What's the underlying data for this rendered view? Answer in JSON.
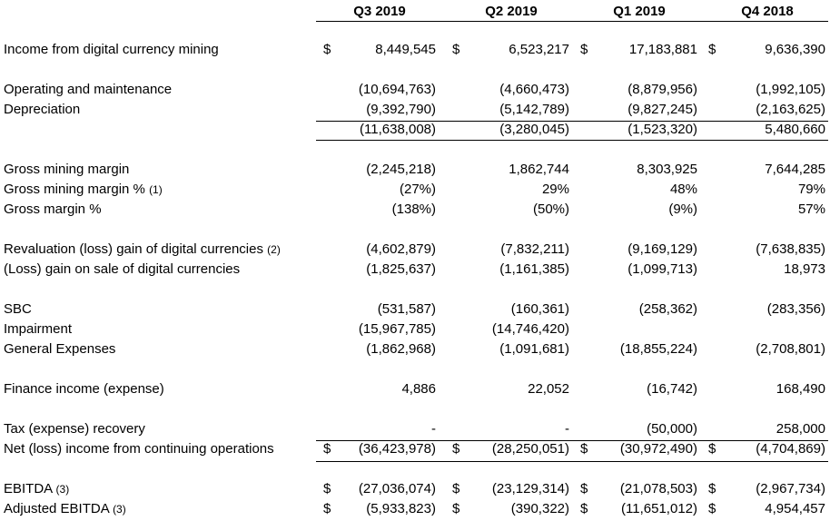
{
  "columns": [
    "Q3 2019",
    "Q2 2019",
    "Q1 2019",
    "Q4 2018"
  ],
  "rows": [
    {
      "label": "Income from digital currency mining",
      "note": "",
      "cur": [
        "$",
        "$",
        "$",
        "$"
      ],
      "values": [
        "8,449,545",
        "6,523,217",
        "17,183,881",
        "9,636,390"
      ]
    },
    {
      "label": "Operating and maintenance",
      "note": "",
      "cur": [
        "",
        "",
        "",
        ""
      ],
      "values": [
        "(10,694,763)",
        "(4,660,473)",
        "(8,879,956)",
        "(1,992,105)"
      ]
    },
    {
      "label": "Depreciation",
      "note": "",
      "cur": [
        "",
        "",
        "",
        ""
      ],
      "values": [
        "(9,392,790)",
        "(5,142,789)",
        "(9,827,245)",
        "(2,163,625)"
      ]
    },
    {
      "label": "",
      "note": "",
      "cur": [
        "",
        "",
        "",
        ""
      ],
      "values": [
        "(11,638,008)",
        "(3,280,045)",
        "(1,523,320)",
        "5,480,660"
      ]
    },
    {
      "label": "Gross mining margin",
      "note": "",
      "cur": [
        "",
        "",
        "",
        ""
      ],
      "values": [
        "(2,245,218)",
        "1,862,744",
        "8,303,925",
        "7,644,285"
      ]
    },
    {
      "label": "Gross mining margin % ",
      "note": "(1)",
      "cur": [
        "",
        "",
        "",
        ""
      ],
      "values": [
        "(27%)",
        "29%",
        "48%",
        "79%"
      ]
    },
    {
      "label": "Gross margin %",
      "note": "",
      "cur": [
        "",
        "",
        "",
        ""
      ],
      "values": [
        "(138%)",
        "(50%)",
        "(9%)",
        "57%"
      ]
    },
    {
      "label": "Revaluation (loss) gain of digital currencies ",
      "note": "(2)",
      "cur": [
        "",
        "",
        "",
        ""
      ],
      "values": [
        "(4,602,879)",
        "(7,832,211)",
        "(9,169,129)",
        "(7,638,835)"
      ]
    },
    {
      "label": "(Loss) gain on sale of digital currencies",
      "note": "",
      "cur": [
        "",
        "",
        "",
        ""
      ],
      "values": [
        "(1,825,637)",
        "(1,161,385)",
        "(1,099,713)",
        "18,973"
      ]
    },
    {
      "label": "SBC",
      "note": "",
      "cur": [
        "",
        "",
        "",
        ""
      ],
      "values": [
        "(531,587)",
        "(160,361)",
        "(258,362)",
        "(283,356)"
      ]
    },
    {
      "label": "Impairment",
      "note": "",
      "cur": [
        "",
        "",
        "",
        ""
      ],
      "values": [
        "(15,967,785)",
        "(14,746,420)",
        "",
        ""
      ]
    },
    {
      "label": "General Expenses",
      "note": "",
      "cur": [
        "",
        "",
        "",
        ""
      ],
      "values": [
        "(1,862,968)",
        "(1,091,681)",
        "(18,855,224)",
        "(2,708,801)"
      ]
    },
    {
      "label": "Finance income (expense)",
      "note": "",
      "cur": [
        "",
        "",
        "",
        ""
      ],
      "values": [
        "4,886",
        "22,052",
        "(16,742)",
        "168,490"
      ]
    },
    {
      "label": "Tax (expense) recovery",
      "note": "",
      "cur": [
        "",
        "",
        "",
        ""
      ],
      "values": [
        "-",
        "-",
        "(50,000)",
        "258,000"
      ]
    },
    {
      "label": "Net (loss) income from continuing operations",
      "note": "",
      "cur": [
        "$",
        "$",
        "$",
        "$"
      ],
      "values": [
        "(36,423,978)",
        "(28,250,051)",
        "(30,972,490)",
        "(4,704,869)"
      ]
    },
    {
      "label": "EBITDA ",
      "note": "(3)",
      "cur": [
        "$",
        "$",
        "$",
        "$"
      ],
      "values": [
        "(27,036,074)",
        "(23,129,314)",
        "(21,078,503)",
        "(2,967,734)"
      ]
    },
    {
      "label": "Adjusted EBITDA ",
      "note": "(3)",
      "cur": [
        "$",
        "$",
        "$",
        "$"
      ],
      "values": [
        "(5,933,823)",
        "(390,322)",
        "(11,651,012)",
        "4,954,457"
      ]
    }
  ]
}
